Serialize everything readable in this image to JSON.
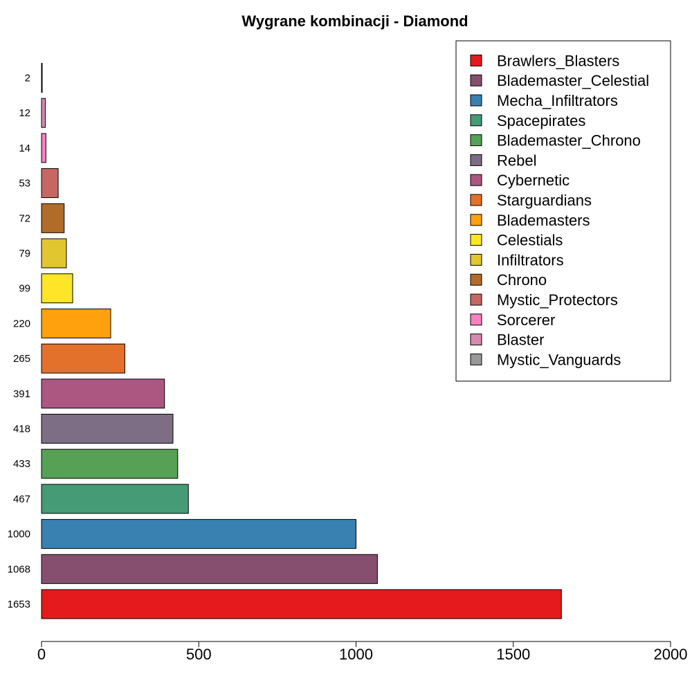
{
  "chart_data": {
    "type": "bar",
    "orientation": "horizontal",
    "title": "Wygrane kombinacji - Diamond",
    "xlabel": "",
    "ylabel": "",
    "xlim": [
      0,
      2000
    ],
    "xticks": [
      0,
      500,
      1000,
      1500,
      2000
    ],
    "grid": false,
    "legend_position": "top-right",
    "categories": [
      "1653",
      "1068",
      "1000",
      "467",
      "433",
      "418",
      "391",
      "265",
      "220",
      "99",
      "79",
      "72",
      "53",
      "14",
      "12",
      "2"
    ],
    "values": [
      1653,
      1068,
      1000,
      467,
      433,
      418,
      391,
      265,
      220,
      99,
      79,
      72,
      53,
      14,
      12,
      2
    ],
    "colors": [
      "#E41A1C",
      "#874F6F",
      "#3881B0",
      "#449B75",
      "#56A155",
      "#7E6E85",
      "#AC5782",
      "#E3712B",
      "#FFA10C",
      "#FFE528",
      "#E1C62F",
      "#B16C29",
      "#C66764",
      "#F781BF",
      "#D789B2",
      "#999999"
    ],
    "legend": [
      {
        "label": "Brawlers_Blasters",
        "color": "#E41A1C"
      },
      {
        "label": "Blademaster_Celestial",
        "color": "#874F6F"
      },
      {
        "label": "Mecha_Infiltrators",
        "color": "#3881B0"
      },
      {
        "label": "Spacepirates",
        "color": "#449B75"
      },
      {
        "label": "Blademaster_Chrono",
        "color": "#56A155"
      },
      {
        "label": "Rebel",
        "color": "#7E6E85"
      },
      {
        "label": "Cybernetic",
        "color": "#AC5782"
      },
      {
        "label": "Starguardians",
        "color": "#E3712B"
      },
      {
        "label": "Blademasters",
        "color": "#FFA10C"
      },
      {
        "label": "Celestials",
        "color": "#FFE528"
      },
      {
        "label": "Infiltrators",
        "color": "#E1C62F"
      },
      {
        "label": "Chrono",
        "color": "#B16C29"
      },
      {
        "label": "Mystic_Protectors",
        "color": "#C66764"
      },
      {
        "label": "Sorcerer",
        "color": "#F781BF"
      },
      {
        "label": "Blaster",
        "color": "#D789B2"
      },
      {
        "label": "Mystic_Vanguards",
        "color": "#999999"
      }
    ]
  }
}
